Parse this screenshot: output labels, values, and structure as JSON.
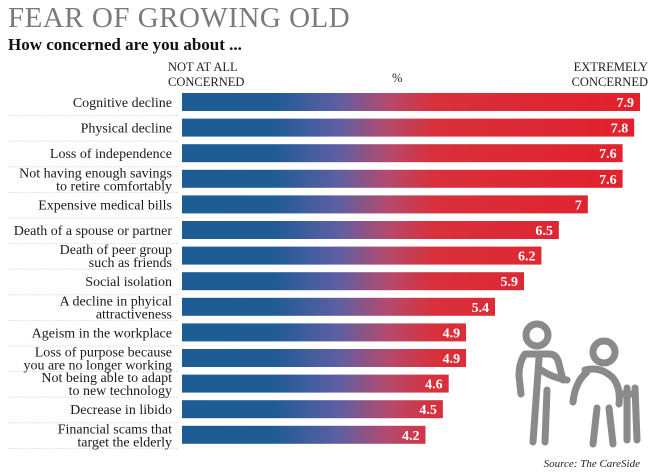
{
  "header": {
    "title": "FEAR OF GROWING OLD",
    "subtitle": "How concerned are you about ...",
    "left_label": "NOT AT ALL CONCERNED",
    "mid_label": "%",
    "right_label": "EXTREMELY CONCERNED"
  },
  "source": "Source: The CareSide",
  "colors": {
    "low": "#1e5c96",
    "high": "#e0202a"
  },
  "illustration": "elderly-people-walker-icon",
  "chart_data": {
    "type": "bar",
    "orientation": "horizontal",
    "title": "FEAR OF GROWING OLD",
    "subtitle": "How concerned are you about ...",
    "categories": [
      [
        "Cognitive decline"
      ],
      [
        "Physical decline"
      ],
      [
        "Loss of independence"
      ],
      [
        "Not having enough savings",
        "to retire comfortably"
      ],
      [
        "Expensive medical bills"
      ],
      [
        "Death of a spouse or partner"
      ],
      [
        "Death of peer group",
        "such as friends"
      ],
      [
        "Social isolation"
      ],
      [
        "A decline in phyical",
        "attractiveness"
      ],
      [
        "Ageism in the workplace"
      ],
      [
        "Loss of purpose because",
        "you are no longer working"
      ],
      [
        "Not being able to adapt",
        "to new technology"
      ],
      [
        "Decrease in libido"
      ],
      [
        "Financial scams that",
        "target the elderly"
      ]
    ],
    "values": [
      7.9,
      7.8,
      7.6,
      7.6,
      7,
      6.5,
      6.2,
      5.9,
      5.4,
      4.9,
      4.9,
      4.6,
      4.5,
      4.2
    ],
    "value_labels": [
      "7.9",
      "7.8",
      "7.6",
      "7.6",
      "7",
      "6.5",
      "6.2",
      "5.9",
      "5.4",
      "4.9",
      "4.9",
      "4.6",
      "4.5",
      "4.2"
    ],
    "xlim": [
      0,
      8
    ],
    "grid": false,
    "legend": "none"
  }
}
